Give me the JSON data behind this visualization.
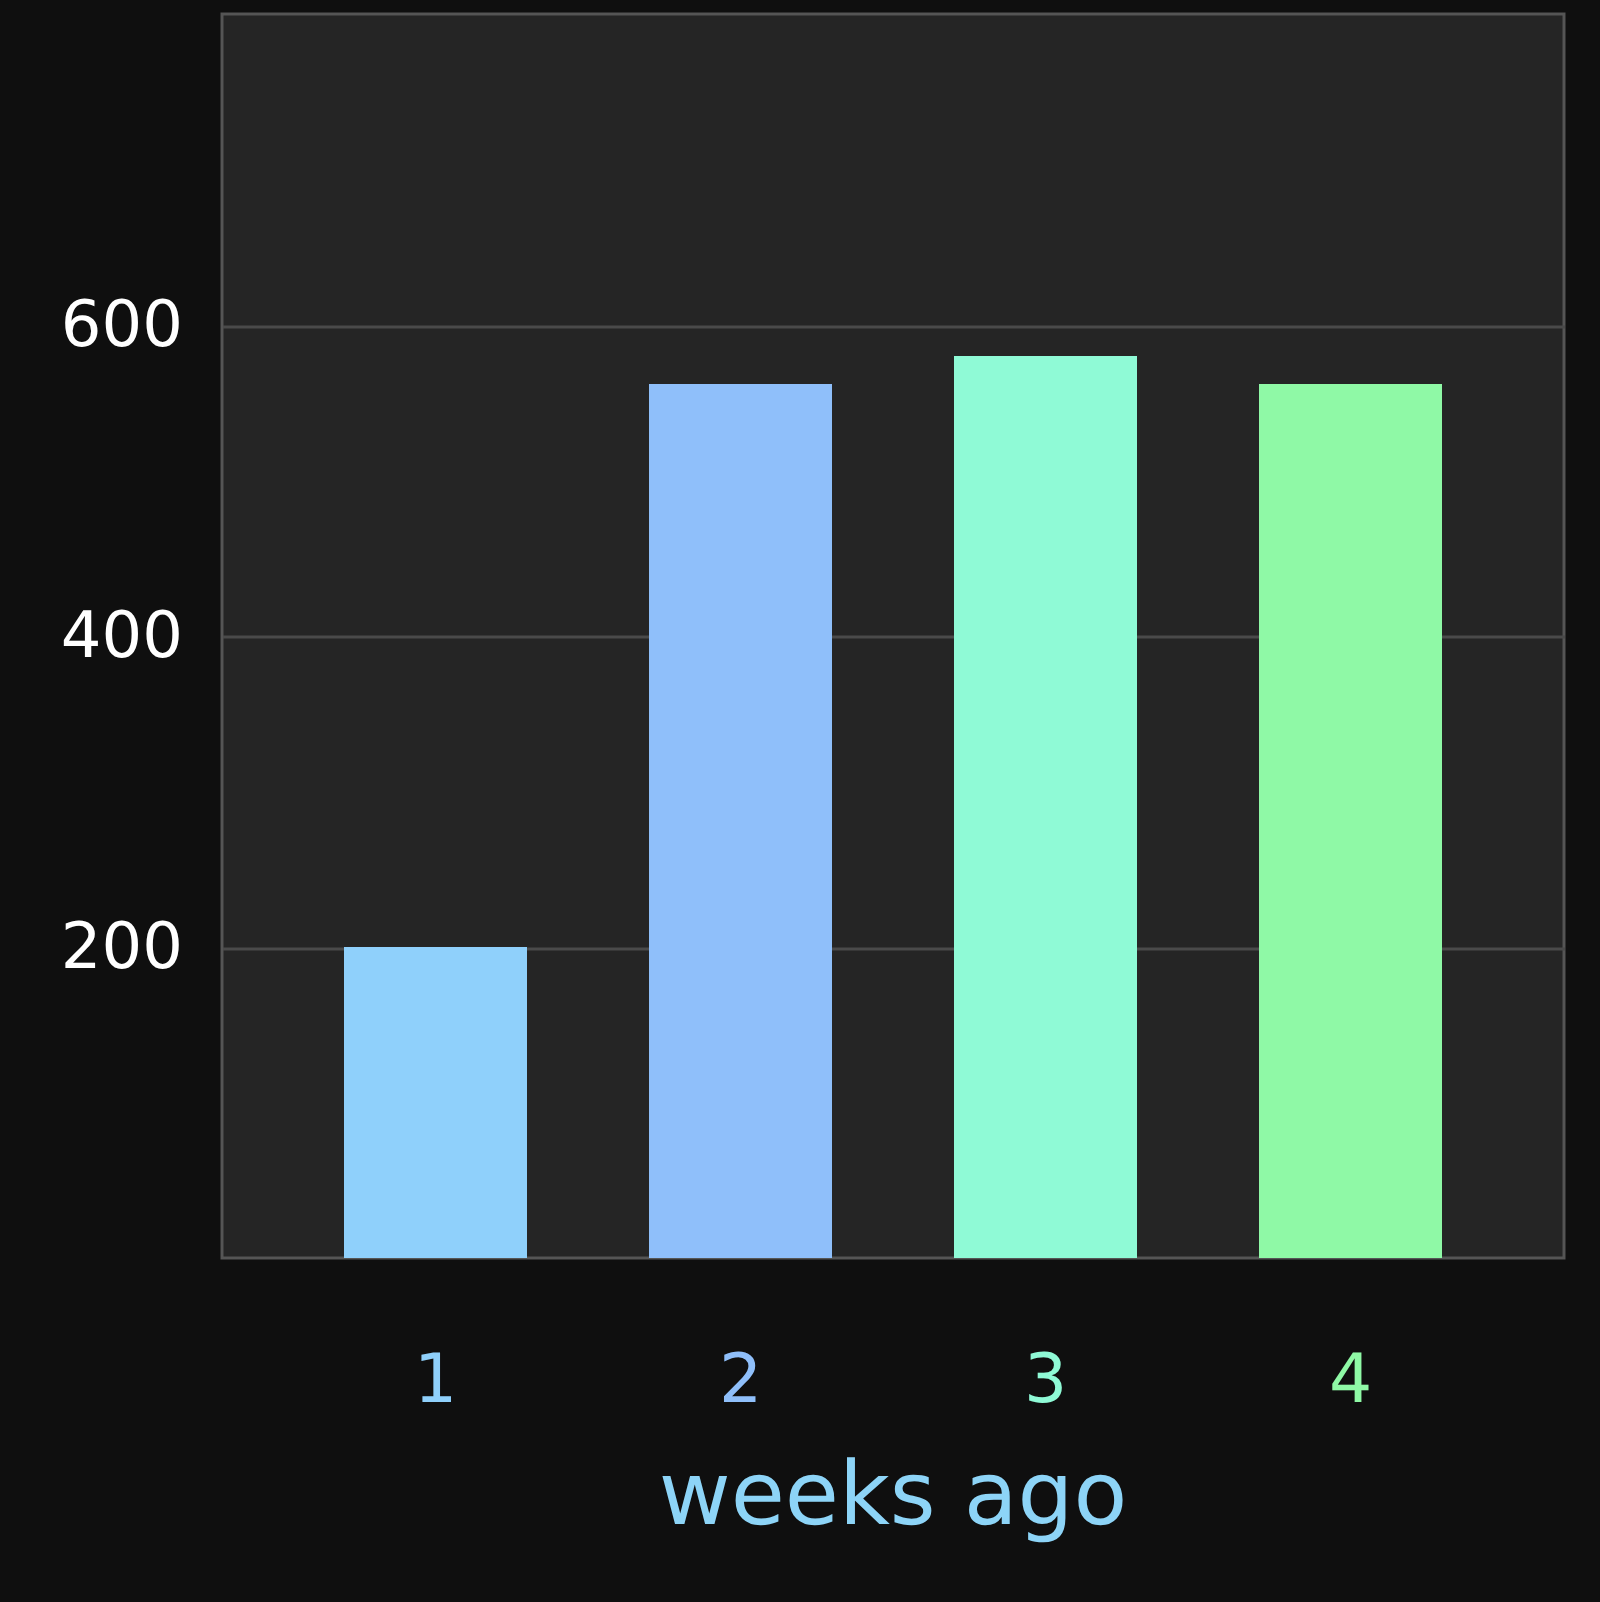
{
  "chart_data": {
    "type": "bar",
    "xlabel": "weeks ago",
    "categories": [
      "1",
      "2",
      "3",
      "4"
    ],
    "values": [
      200,
      562,
      580,
      562
    ],
    "colors": [
      "#8fd0fb",
      "#8fbffa",
      "#8ffad6",
      "#8ff9a6"
    ],
    "ylim": [
      0,
      800
    ],
    "yticks": [
      200,
      400,
      600
    ],
    "grid": "y"
  }
}
